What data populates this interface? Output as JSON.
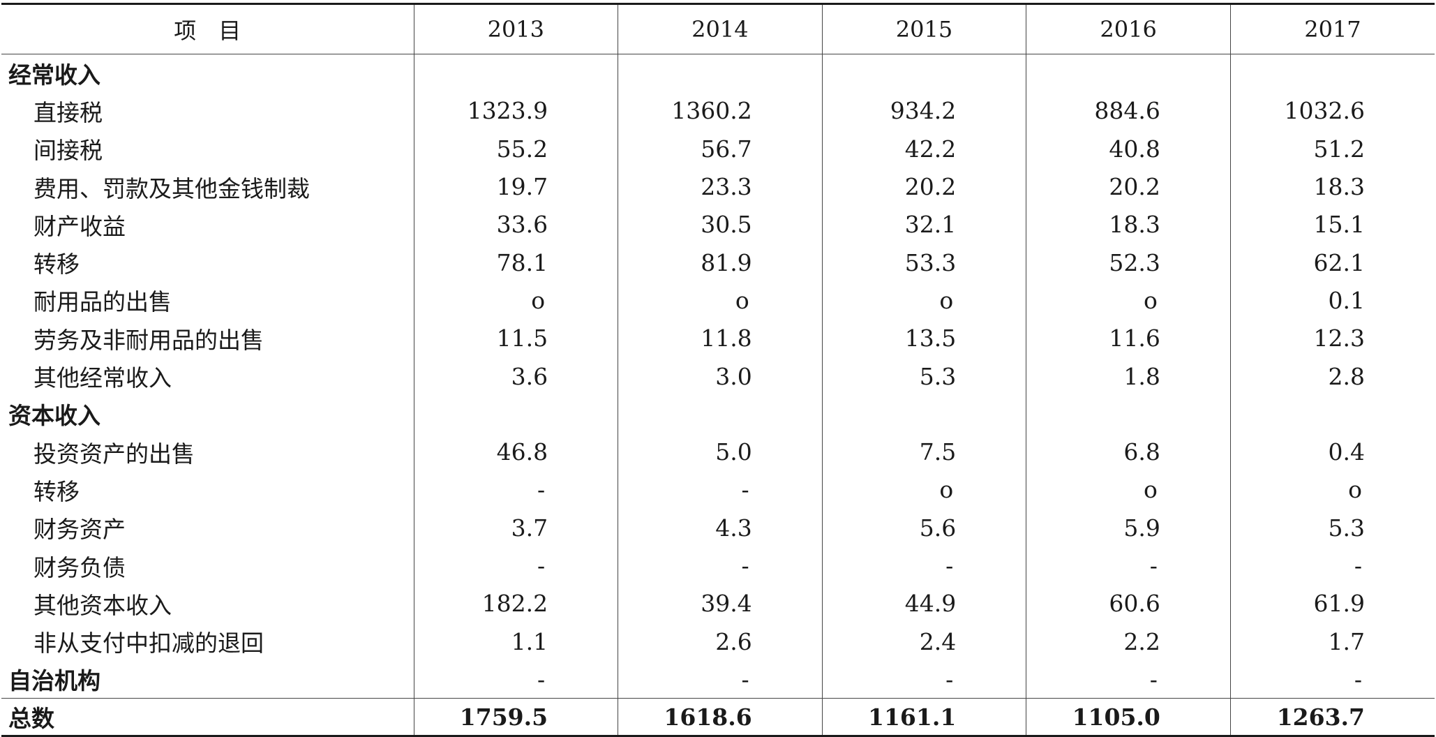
{
  "table": {
    "header": {
      "item_label": "项　目",
      "years": [
        "2013",
        "2014",
        "2015",
        "2016",
        "2017"
      ]
    },
    "rows": [
      {
        "type": "section",
        "label": "经常收入",
        "values": [
          "",
          "",
          "",
          "",
          ""
        ]
      },
      {
        "type": "item",
        "label": "直接税",
        "values": [
          "1323.9",
          "1360.2",
          "934.2",
          "884.6",
          "1032.6"
        ]
      },
      {
        "type": "item",
        "label": "间接税",
        "values": [
          "55.2",
          "56.7",
          "42.2",
          "40.8",
          "51.2"
        ]
      },
      {
        "type": "item",
        "label": "费用、罚款及其他金钱制裁",
        "values": [
          "19.7",
          "23.3",
          "20.2",
          "20.2",
          "18.3"
        ]
      },
      {
        "type": "item",
        "label": "财产收益",
        "values": [
          "33.6",
          "30.5",
          "32.1",
          "18.3",
          "15.1"
        ]
      },
      {
        "type": "item",
        "label": "转移",
        "values": [
          "78.1",
          "81.9",
          "53.3",
          "52.3",
          "62.1"
        ]
      },
      {
        "type": "item",
        "label": "耐用品的出售",
        "values": [
          "o",
          "o",
          "o",
          "o",
          "0.1"
        ]
      },
      {
        "type": "item",
        "label": "劳务及非耐用品的出售",
        "values": [
          "11.5",
          "11.8",
          "13.5",
          "11.6",
          "12.3"
        ]
      },
      {
        "type": "item",
        "label": "其他经常收入",
        "values": [
          "3.6",
          "3.0",
          "5.3",
          "1.8",
          "2.8"
        ]
      },
      {
        "type": "section",
        "label": "资本收入",
        "values": [
          "",
          "",
          "",
          "",
          ""
        ]
      },
      {
        "type": "item",
        "label": "投资资产的出售",
        "values": [
          "46.8",
          "5.0",
          "7.5",
          "6.8",
          "0.4"
        ]
      },
      {
        "type": "item",
        "label": "转移",
        "values": [
          "-",
          "-",
          "o",
          "o",
          "o"
        ]
      },
      {
        "type": "item",
        "label": "财务资产",
        "values": [
          "3.7",
          "4.3",
          "5.6",
          "5.9",
          "5.3"
        ]
      },
      {
        "type": "item",
        "label": "财务负债",
        "values": [
          "-",
          "-",
          "-",
          "-",
          "-"
        ]
      },
      {
        "type": "item",
        "label": "其他资本收入",
        "values": [
          "182.2",
          "39.4",
          "44.9",
          "60.6",
          "61.9"
        ]
      },
      {
        "type": "item",
        "label": "非从支付中扣减的退回",
        "values": [
          "1.1",
          "2.6",
          "2.4",
          "2.2",
          "1.7"
        ]
      },
      {
        "type": "section",
        "label": "自治机构",
        "values": [
          "-",
          "-",
          "-",
          "-",
          "-"
        ]
      },
      {
        "type": "total",
        "label": "总数",
        "values": [
          "1759.5",
          "1618.6",
          "1161.1",
          "1105.0",
          "1263.7"
        ]
      }
    ]
  }
}
